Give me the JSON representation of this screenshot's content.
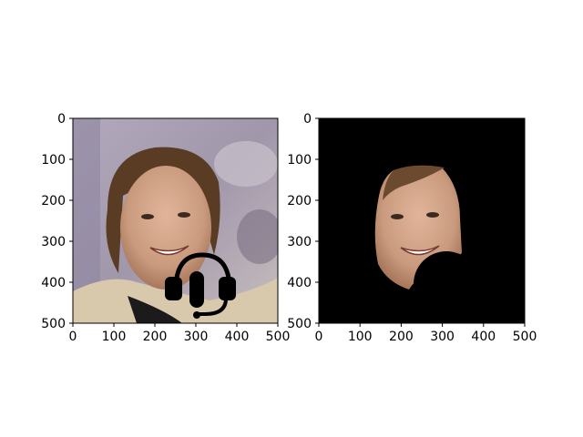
{
  "chart_data": [
    {
      "type": "image",
      "title": "",
      "xlabel": "",
      "ylabel": "",
      "xlim": [
        0,
        500
      ],
      "ylim": [
        500,
        0
      ],
      "xticks": [
        0,
        100,
        200,
        300,
        400,
        500
      ],
      "yticks": [
        0,
        100,
        200,
        300,
        400,
        500
      ],
      "content": "photograph of a smiling man with a headset-and-microphone icon drawn over the lower right of his face"
    },
    {
      "type": "image",
      "title": "",
      "xlabel": "",
      "ylabel": "",
      "xlim": [
        0,
        500
      ],
      "ylim": [
        500,
        0
      ],
      "xticks": [
        0,
        100,
        200,
        300,
        400,
        500
      ],
      "yticks": [
        0,
        100,
        200,
        300,
        400,
        500
      ],
      "content": "segmentation mask: only the face region visible on a black background, lower right of face occluded by a black circular region"
    }
  ],
  "colors": {
    "background": "#ffffff",
    "axes": "#000000",
    "mask_background": "#000000",
    "skin": "#c99a7e",
    "hair": "#5a3c24",
    "photo_backdrop": "#a79cae",
    "jacket": "#d8c8ac",
    "headset_icon": "#000000"
  }
}
